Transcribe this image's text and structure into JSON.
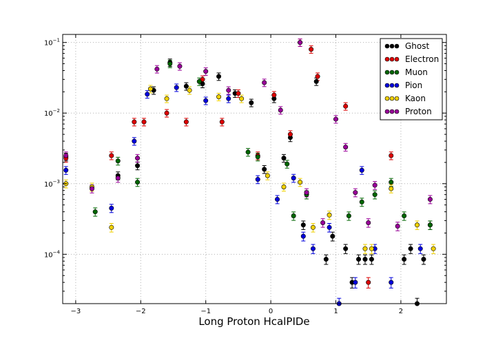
{
  "chart_data": {
    "type": "scatter",
    "title": "",
    "xlabel": "Long Proton HcalPIDe",
    "ylabel": "",
    "xlim": [
      -3.2,
      2.7
    ],
    "ylim": [
      2e-05,
      0.13
    ],
    "yscale": "log",
    "grid": true,
    "legend_position": "top-right",
    "x_ticks": [
      -3,
      -2,
      -1,
      0,
      1,
      2
    ],
    "x_tick_labels": [
      "−3",
      "−2",
      "−1",
      "0",
      "1",
      "2"
    ],
    "y_ticks": [
      0.0001,
      0.001,
      0.01,
      0.1
    ],
    "y_tick_labels": [
      {
        "base": "10",
        "exp": "−4"
      },
      {
        "base": "10",
        "exp": "−3"
      },
      {
        "base": "10",
        "exp": "−2"
      },
      {
        "base": "10",
        "exp": "−1"
      }
    ],
    "series": [
      {
        "name": "Ghost",
        "color": "#000000",
        "points": [
          [
            -3.15,
            0.0024
          ],
          [
            -2.35,
            0.0013
          ],
          [
            -2.05,
            0.0018
          ],
          [
            -1.8,
            0.021
          ],
          [
            -1.55,
            0.052
          ],
          [
            -1.3,
            0.024
          ],
          [
            -1.05,
            0.026
          ],
          [
            -0.8,
            0.033
          ],
          [
            -0.55,
            0.019
          ],
          [
            -0.3,
            0.014
          ],
          [
            -0.1,
            0.0016
          ],
          [
            0.05,
            0.016
          ],
          [
            0.2,
            0.0023
          ],
          [
            0.3,
            0.0045
          ],
          [
            0.5,
            0.00026
          ],
          [
            0.7,
            0.028
          ],
          [
            0.85,
            8.5e-05
          ],
          [
            0.95,
            0.00018
          ],
          [
            1.15,
            0.00012
          ],
          [
            1.25,
            4e-05
          ],
          [
            1.35,
            8.5e-05
          ],
          [
            1.45,
            8.5e-05
          ],
          [
            1.55,
            8.5e-05
          ],
          [
            2.05,
            8.5e-05
          ],
          [
            2.15,
            0.00012
          ],
          [
            2.25,
            2e-05
          ],
          [
            2.35,
            8.5e-05
          ],
          [
            2.45,
            0.00026
          ]
        ]
      },
      {
        "name": "Electron",
        "color": "#dd0000",
        "points": [
          [
            -3.15,
            0.0023
          ],
          [
            -2.45,
            0.0025
          ],
          [
            -2.1,
            0.0075
          ],
          [
            -1.95,
            0.0075
          ],
          [
            -1.6,
            0.01
          ],
          [
            -1.3,
            0.0075
          ],
          [
            -1.05,
            0.03
          ],
          [
            -0.75,
            0.0075
          ],
          [
            -0.5,
            0.019
          ],
          [
            -0.2,
            0.0025
          ],
          [
            0.05,
            0.018
          ],
          [
            0.3,
            0.005
          ],
          [
            0.72,
            0.033
          ],
          [
            1.15,
            0.0125
          ],
          [
            1.5,
            4e-05
          ],
          [
            1.85,
            0.0025
          ],
          [
            0.62,
            0.08
          ],
          [
            0.45,
            0.1
          ]
        ]
      },
      {
        "name": "Muon",
        "color": "#006600",
        "points": [
          [
            -2.7,
            0.0004
          ],
          [
            -2.35,
            0.0021
          ],
          [
            -2.05,
            0.00105
          ],
          [
            -1.55,
            0.05
          ],
          [
            -1.1,
            0.028
          ],
          [
            -0.35,
            0.0028
          ],
          [
            -0.2,
            0.0024
          ],
          [
            0.25,
            0.0019
          ],
          [
            0.35,
            0.00035
          ],
          [
            0.55,
            0.0007
          ],
          [
            1.2,
            0.00035
          ],
          [
            1.4,
            0.00055
          ],
          [
            1.6,
            0.0007
          ],
          [
            1.85,
            0.00105
          ],
          [
            2.05,
            0.00035
          ],
          [
            2.45,
            0.00026
          ]
        ]
      },
      {
        "name": "Pion",
        "color": "#0000dd",
        "points": [
          [
            -3.15,
            0.00155
          ],
          [
            -2.45,
            0.00045
          ],
          [
            -2.1,
            0.004
          ],
          [
            -1.9,
            0.0185
          ],
          [
            -1.45,
            0.023
          ],
          [
            -1.0,
            0.015
          ],
          [
            -0.65,
            0.016
          ],
          [
            -0.2,
            0.00115
          ],
          [
            0.1,
            0.0006
          ],
          [
            0.35,
            0.0012
          ],
          [
            0.5,
            0.00018
          ],
          [
            0.65,
            0.00012
          ],
          [
            0.9,
            0.00024
          ],
          [
            1.05,
            2e-05
          ],
          [
            1.3,
            4e-05
          ],
          [
            1.4,
            0.00155
          ],
          [
            1.6,
            0.00012
          ],
          [
            1.85,
            4e-05
          ],
          [
            2.3,
            0.00012
          ]
        ]
      },
      {
        "name": "Kaon",
        "color": "#f0d000",
        "points": [
          [
            -3.15,
            0.001
          ],
          [
            -2.75,
            0.0009
          ],
          [
            -2.45,
            0.00024
          ],
          [
            -1.85,
            0.022
          ],
          [
            -1.6,
            0.016
          ],
          [
            -1.25,
            0.021
          ],
          [
            -0.8,
            0.017
          ],
          [
            -0.45,
            0.016
          ],
          [
            -0.05,
            0.0013
          ],
          [
            0.2,
            0.0009
          ],
          [
            0.45,
            0.00105
          ],
          [
            0.65,
            0.00024
          ],
          [
            0.9,
            0.00036
          ],
          [
            1.45,
            0.00012
          ],
          [
            1.55,
            0.00012
          ],
          [
            1.85,
            0.00085
          ],
          [
            2.25,
            0.00026
          ],
          [
            2.5,
            0.00012
          ]
        ]
      },
      {
        "name": "Proton",
        "color": "#990099",
        "points": [
          [
            -3.15,
            0.0025
          ],
          [
            -2.75,
            0.00085
          ],
          [
            -2.35,
            0.0012
          ],
          [
            -2.05,
            0.0023
          ],
          [
            -1.75,
            0.042
          ],
          [
            -1.4,
            0.046
          ],
          [
            -1.0,
            0.039
          ],
          [
            -0.65,
            0.021
          ],
          [
            -0.1,
            0.027
          ],
          [
            0.15,
            0.011
          ],
          [
            0.45,
            0.1
          ],
          [
            0.55,
            0.00075
          ],
          [
            0.8,
            0.00028
          ],
          [
            1.0,
            0.0082
          ],
          [
            1.15,
            0.0033
          ],
          [
            1.3,
            0.00075
          ],
          [
            1.5,
            0.00028
          ],
          [
            1.6,
            0.00095
          ],
          [
            1.95,
            0.00025
          ],
          [
            2.45,
            0.0006
          ]
        ]
      }
    ]
  }
}
